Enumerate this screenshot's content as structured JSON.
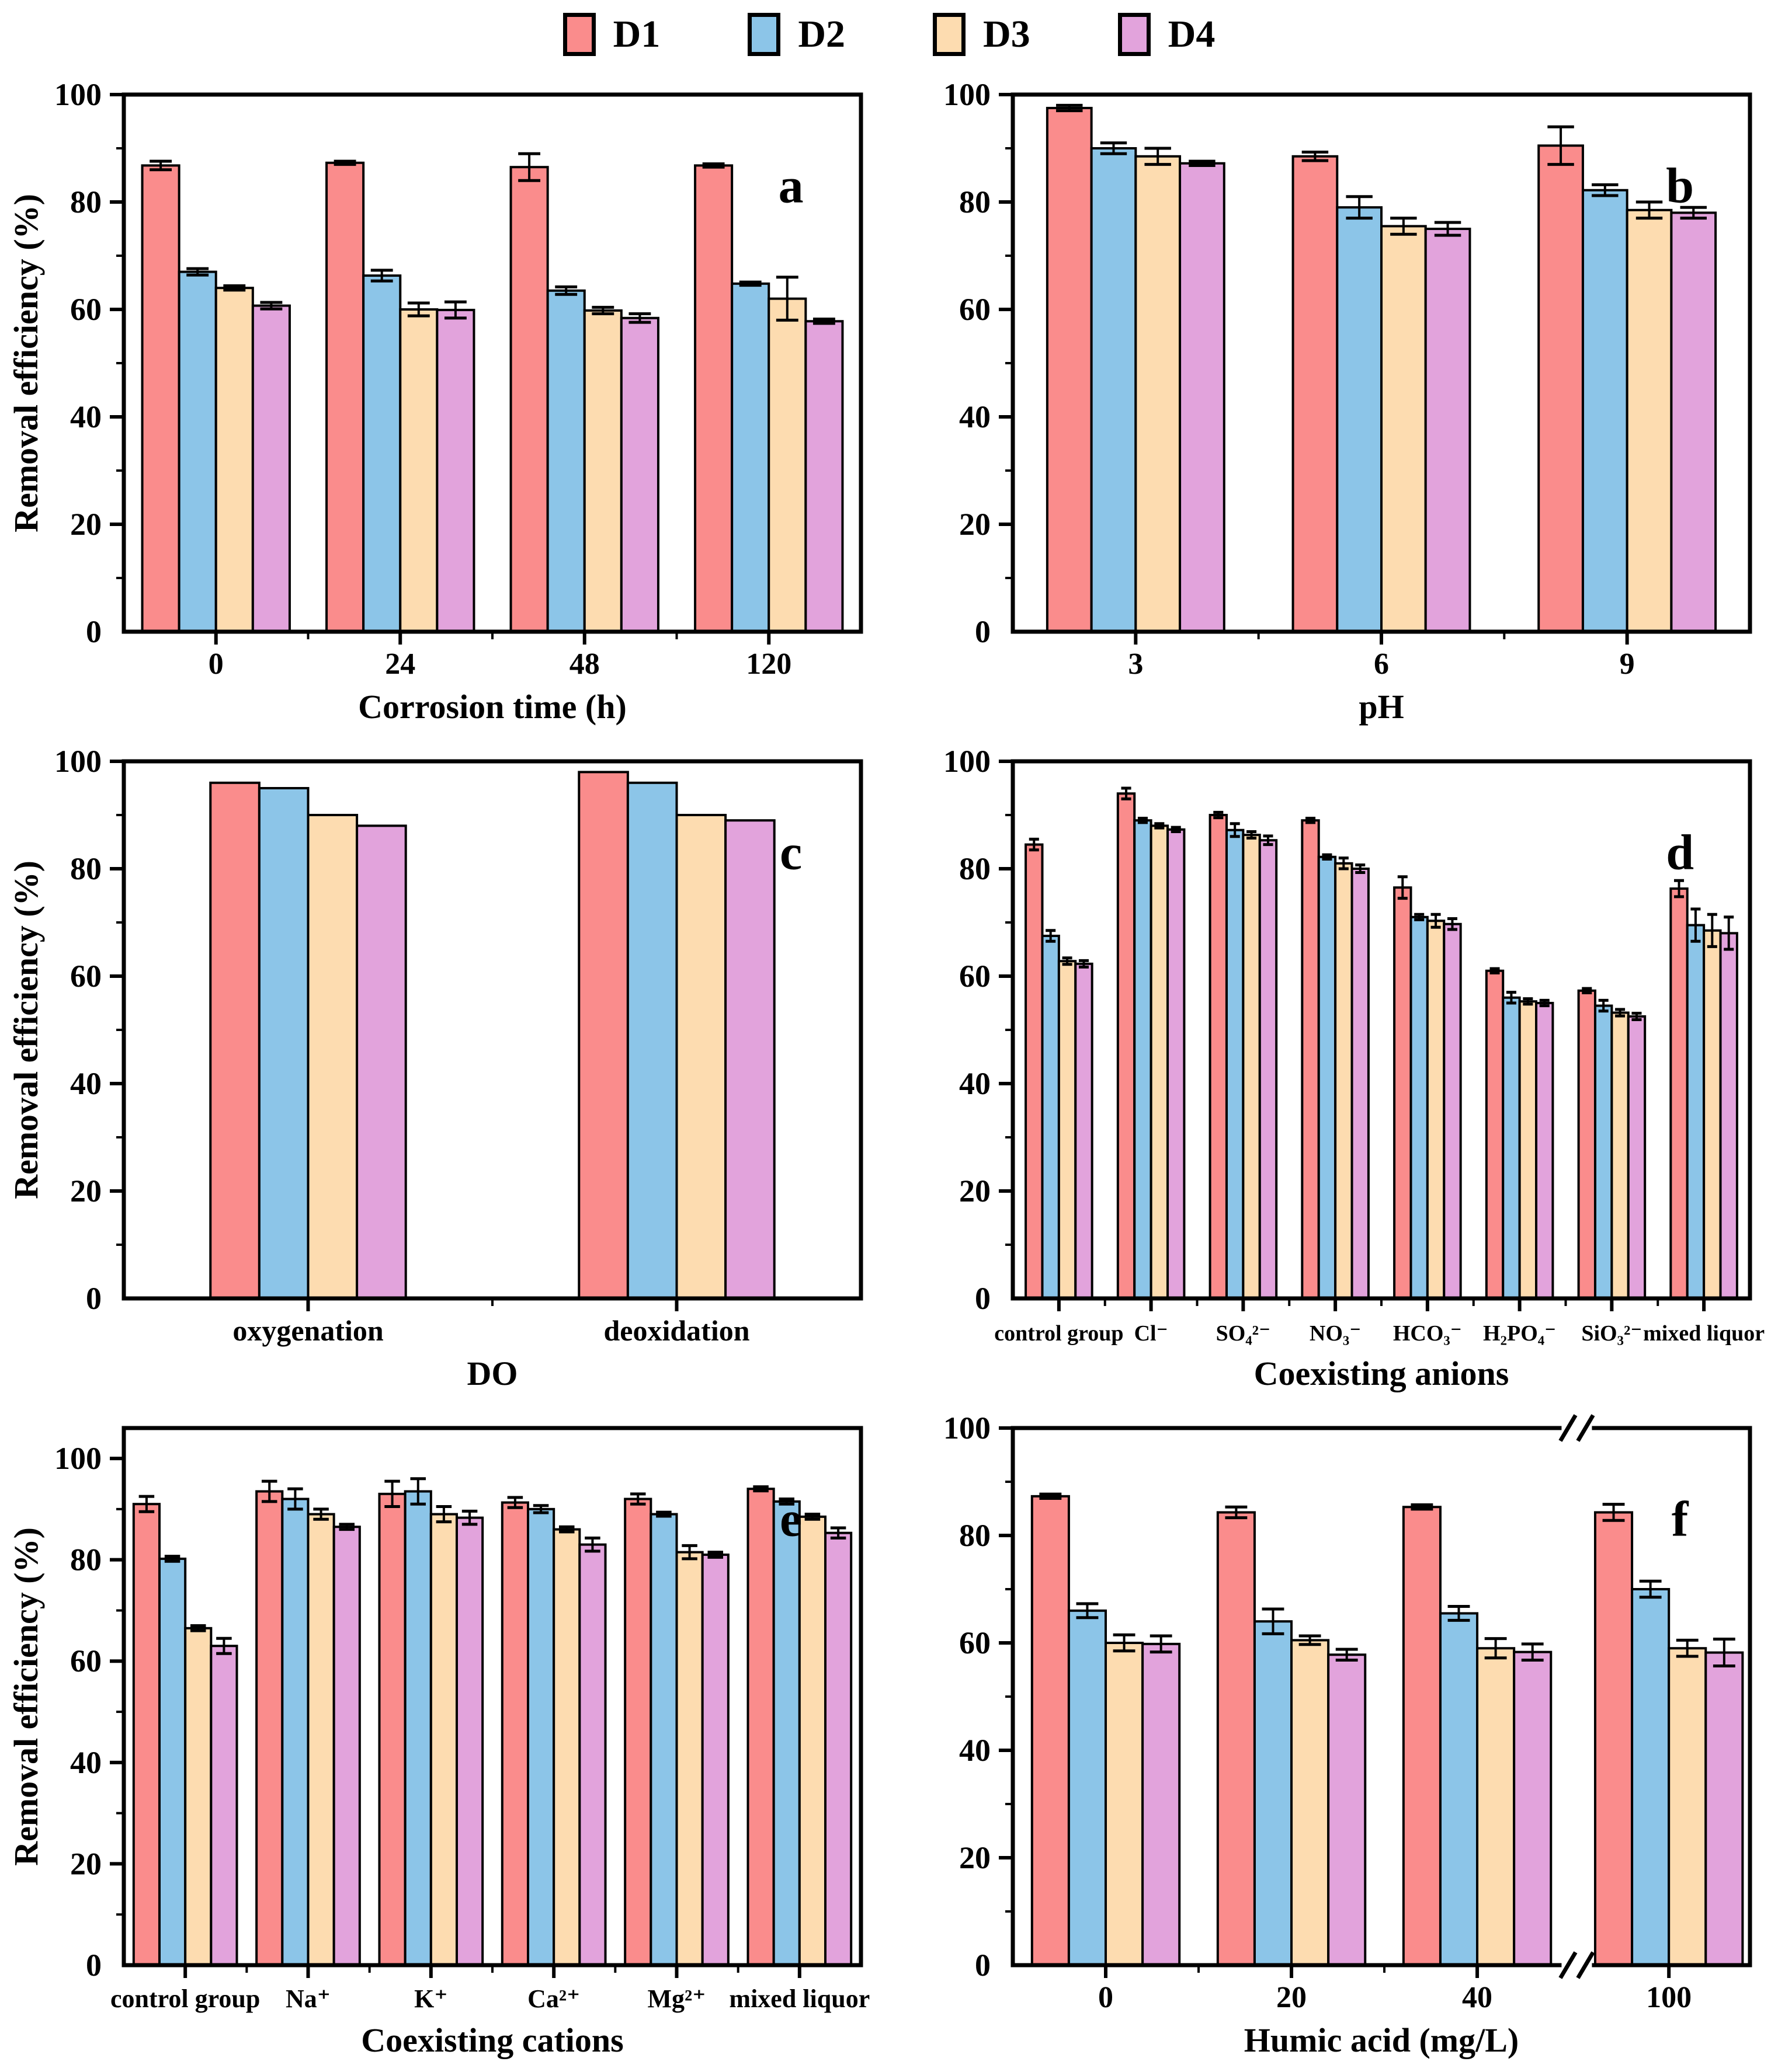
{
  "figure": {
    "y_axis_label": "Removal efficiency (%)"
  },
  "legend": {
    "series": [
      {
        "name": "D1",
        "color": "#FA8C8C"
      },
      {
        "name": "D2",
        "color": "#8CC5E8"
      },
      {
        "name": "D3",
        "color": "#FDDCB0"
      },
      {
        "name": "D4",
        "color": "#E2A3DC"
      }
    ]
  },
  "style": {
    "bar_border": "#000000",
    "axis_color": "#000000",
    "background": "#ffffff"
  },
  "chart_data": [
    {
      "type": "bar",
      "panel_label": "a",
      "xlabel": "Corrosion time (h)",
      "ylabel": "Removal efficiency (%)",
      "ylim": [
        0,
        100
      ],
      "ytick_step": 20,
      "y_frame_max": 100,
      "categories": [
        "0",
        "24",
        "48",
        "120"
      ],
      "cluster_fraction": 0.8,
      "tick_font": 52,
      "series": [
        {
          "name": "D1",
          "values": [
            86.8,
            87.3,
            86.5,
            86.8
          ],
          "errors": [
            0.8,
            0.3,
            2.5,
            0.3
          ]
        },
        {
          "name": "D2",
          "values": [
            67.0,
            66.3,
            63.5,
            64.8
          ],
          "errors": [
            0.6,
            1.0,
            0.7,
            0.3
          ]
        },
        {
          "name": "D3",
          "values": [
            64.0,
            60.0,
            59.8,
            62.0
          ],
          "errors": [
            0.4,
            1.2,
            0.6,
            4.0
          ]
        },
        {
          "name": "D4",
          "values": [
            60.7,
            59.9,
            58.4,
            57.8
          ],
          "errors": [
            0.6,
            1.5,
            0.8,
            0.4
          ]
        }
      ]
    },
    {
      "type": "bar",
      "panel_label": "b",
      "xlabel": "pH",
      "ylabel": "",
      "ylim": [
        0,
        100
      ],
      "ytick_step": 20,
      "y_frame_max": 100,
      "categories": [
        "3",
        "6",
        "9"
      ],
      "cluster_fraction": 0.72,
      "tick_font": 52,
      "series": [
        {
          "name": "D1",
          "values": [
            97.5,
            88.5,
            90.5
          ],
          "errors": [
            0.5,
            0.8,
            3.5
          ]
        },
        {
          "name": "D2",
          "values": [
            90.0,
            79.0,
            82.2
          ],
          "errors": [
            1.0,
            2.0,
            1.0
          ]
        },
        {
          "name": "D3",
          "values": [
            88.5,
            75.5,
            78.5
          ],
          "errors": [
            1.5,
            1.5,
            1.5
          ]
        },
        {
          "name": "D4",
          "values": [
            87.2,
            75.0,
            78.0
          ],
          "errors": [
            0.4,
            1.2,
            1.0
          ]
        }
      ]
    },
    {
      "type": "bar",
      "panel_label": "c",
      "xlabel": "DO",
      "ylabel": "Removal efficiency (%)",
      "ylim": [
        0,
        100
      ],
      "ytick_step": 20,
      "y_frame_max": 100,
      "categories": [
        "oxygenation",
        "deoxidation"
      ],
      "cluster_fraction": 0.53,
      "tick_font": 50,
      "series": [
        {
          "name": "D1",
          "values": [
            96,
            98
          ]
        },
        {
          "name": "D2",
          "values": [
            95,
            96
          ]
        },
        {
          "name": "D3",
          "values": [
            90,
            90
          ]
        },
        {
          "name": "D4",
          "values": [
            88,
            89
          ]
        }
      ]
    },
    {
      "type": "bar",
      "panel_label": "d",
      "xlabel": "Coexisting anions",
      "ylabel": "",
      "ylim": [
        0,
        100
      ],
      "ytick_step": 20,
      "y_frame_max": 100,
      "categories": [
        "control group",
        "Cl⁻",
        "SO₄²⁻",
        "NO₃⁻",
        "HCO₃⁻",
        "H₂PO₄⁻",
        "SiO₃²⁻",
        "mixed liquor"
      ],
      "cluster_fraction": 0.72,
      "tick_font": 38,
      "series": [
        {
          "name": "D1",
          "values": [
            84.5,
            94.0,
            90.0,
            89.0,
            76.5,
            61.0,
            57.3,
            76.3
          ],
          "errors": [
            1.0,
            1.0,
            0.5,
            0.4,
            2.0,
            0.4,
            0.4,
            1.5
          ]
        },
        {
          "name": "D2",
          "values": [
            67.5,
            89.0,
            87.2,
            82.2,
            71.0,
            56.0,
            54.5,
            69.5
          ],
          "errors": [
            1.0,
            0.4,
            1.2,
            0.4,
            0.5,
            1.0,
            1.0,
            3.0
          ]
        },
        {
          "name": "D3",
          "values": [
            62.8,
            88.0,
            86.3,
            81.0,
            70.3,
            55.3,
            53.2,
            68.5
          ],
          "errors": [
            0.6,
            0.4,
            0.6,
            1.0,
            1.2,
            0.5,
            0.6,
            3.0
          ]
        },
        {
          "name": "D4",
          "values": [
            62.3,
            87.3,
            85.3,
            80.0,
            69.7,
            55.0,
            52.5,
            68.0
          ],
          "errors": [
            0.6,
            0.4,
            0.8,
            0.7,
            1.0,
            0.5,
            0.6,
            3.0
          ]
        }
      ]
    },
    {
      "type": "bar",
      "panel_label": "e",
      "xlabel": "Coexisting cations",
      "ylabel": "Removal efficiency (%)",
      "ylim": [
        0,
        100
      ],
      "ytick_step": 20,
      "y_frame_max": 106,
      "categories": [
        "control group",
        "Na⁺",
        "K⁺",
        "Ca²⁺",
        "Mg²⁺",
        "mixed liquor"
      ],
      "cluster_fraction": 0.84,
      "tick_font": 44,
      "series": [
        {
          "name": "D1",
          "values": [
            91.0,
            93.5,
            93.0,
            91.3,
            92.0,
            94.0
          ],
          "errors": [
            1.5,
            2.0,
            2.5,
            1.0,
            1.0,
            0.4
          ]
        },
        {
          "name": "D2",
          "values": [
            80.2,
            92.0,
            93.5,
            90.0,
            89.0,
            91.5
          ],
          "errors": [
            0.5,
            2.0,
            2.5,
            0.7,
            0.4,
            0.5
          ]
        },
        {
          "name": "D3",
          "values": [
            66.5,
            89.0,
            89.0,
            86.0,
            81.5,
            88.5
          ],
          "errors": [
            0.5,
            1.0,
            1.5,
            0.5,
            1.3,
            0.5
          ]
        },
        {
          "name": "D4",
          "values": [
            63.0,
            86.5,
            88.3,
            83.0,
            81.0,
            85.3
          ],
          "errors": [
            1.5,
            0.5,
            1.3,
            1.3,
            0.5,
            1.0
          ]
        }
      ]
    },
    {
      "type": "bar",
      "panel_label": "f",
      "xlabel": "Humic acid (mg/L)",
      "ylabel": "",
      "ylim": [
        0,
        100
      ],
      "ytick_step": 20,
      "y_frame_max": 100,
      "categories": [
        "0",
        "20",
        "40",
        "100"
      ],
      "x_positions": [
        0.126,
        0.378,
        0.63,
        0.89
      ],
      "break_x": 0.765,
      "cluster_fraction": 0.8,
      "tick_font": 52,
      "series": [
        {
          "name": "D1",
          "values": [
            87.3,
            84.3,
            85.3,
            84.3
          ],
          "errors": [
            0.4,
            1.0,
            0.4,
            1.5
          ]
        },
        {
          "name": "D2",
          "values": [
            66.0,
            64.0,
            65.5,
            70.0
          ],
          "errors": [
            1.3,
            2.3,
            1.3,
            1.5
          ]
        },
        {
          "name": "D3",
          "values": [
            60.0,
            60.5,
            59.0,
            59.0
          ],
          "errors": [
            1.5,
            0.8,
            1.8,
            1.5
          ]
        },
        {
          "name": "D4",
          "values": [
            59.8,
            57.8,
            58.3,
            58.2
          ],
          "errors": [
            1.5,
            1.0,
            1.5,
            2.5
          ]
        }
      ]
    }
  ]
}
